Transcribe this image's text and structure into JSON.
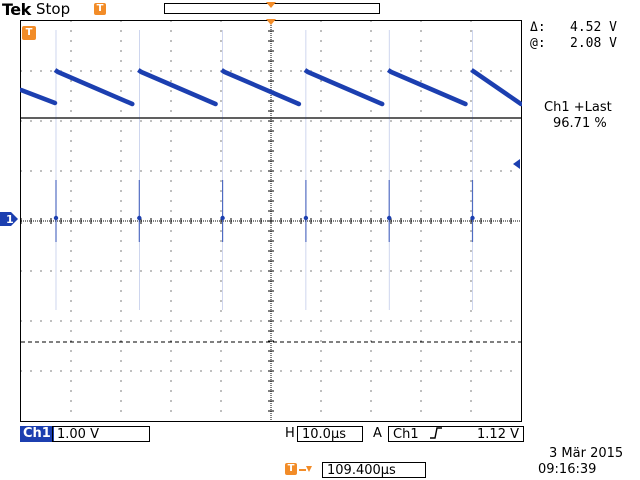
{
  "header": {
    "brand": "Tek",
    "run_state": "Stop"
  },
  "readouts": {
    "delta_label": "Δ:",
    "delta_value": "4.52 V",
    "at_label": "@:",
    "at_value": "2.08 V",
    "measure_title": "Ch1 +Last",
    "measure_value": "96.71 %"
  },
  "markers": {
    "trigger_marker": "T",
    "ch1_ground_marker": "1"
  },
  "footer": {
    "channel_label": "Ch1",
    "volts_div": "1.00 V",
    "horiz_label": "H",
    "time_div": "10.0µs",
    "acq_label": "A",
    "trig_source": "Ch1",
    "trig_slope_icon": "rising-edge-icon",
    "trig_level": "1.12 V",
    "delay_value": "109.400µs",
    "date": "3 Mär  2015",
    "time": "09:16:39"
  },
  "colors": {
    "trace": "#1c3fb0",
    "marker": "#f28c28",
    "grid": "#000000"
  }
}
